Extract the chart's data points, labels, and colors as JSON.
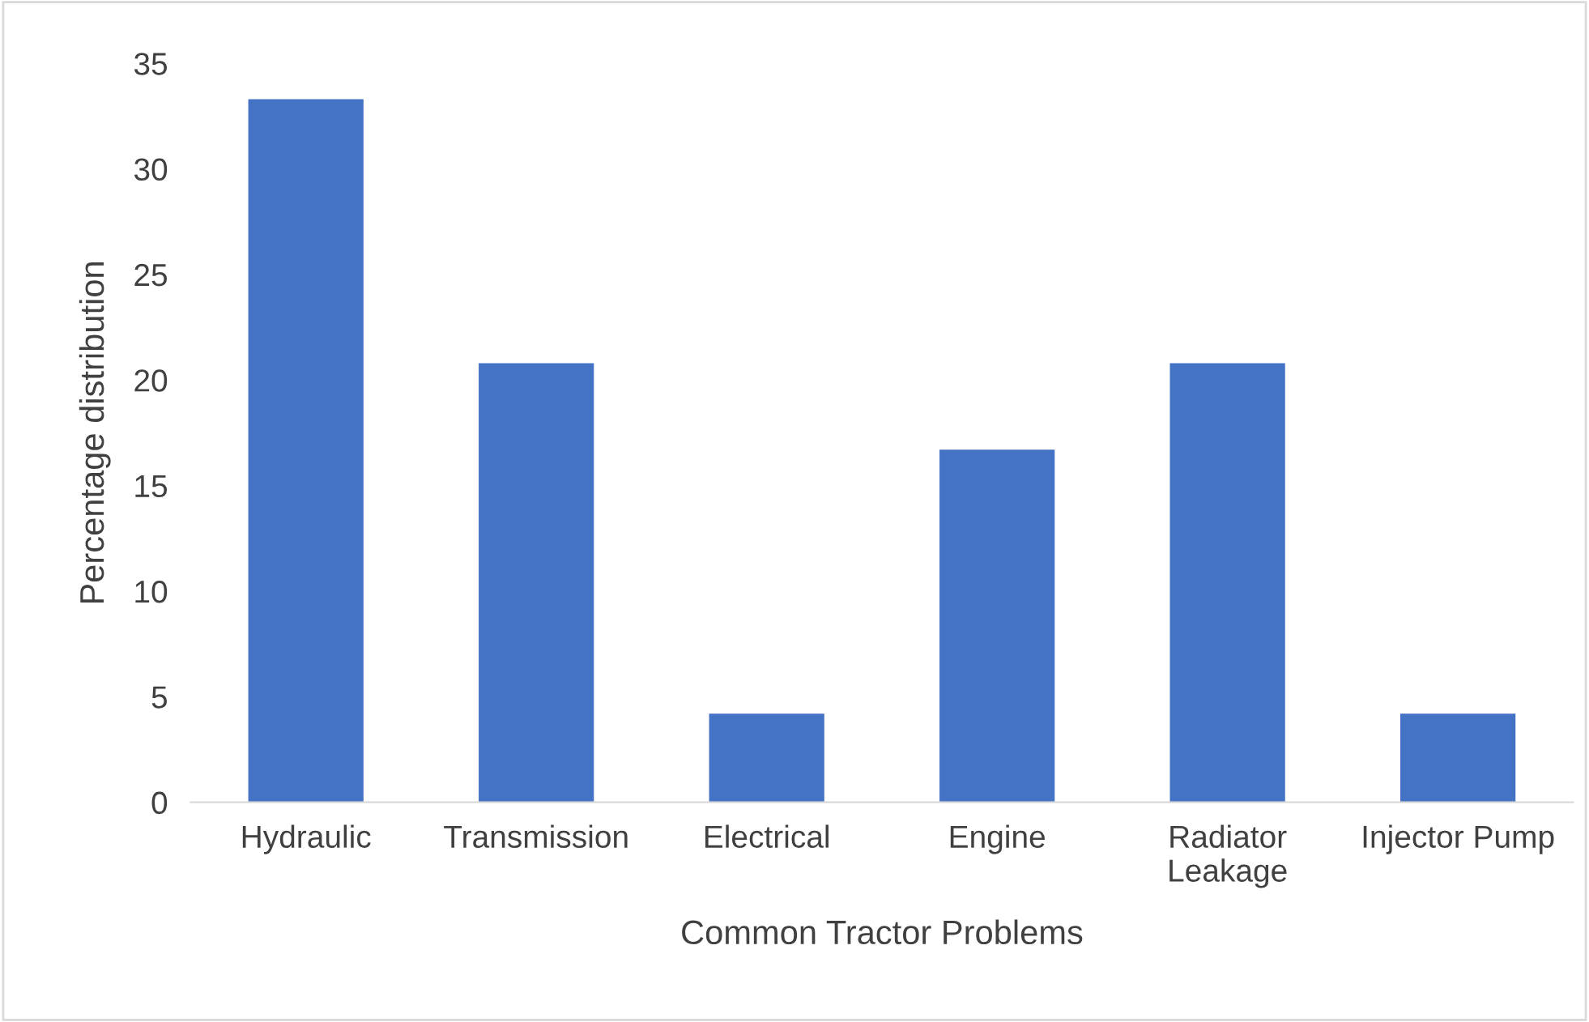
{
  "chart_data": {
    "type": "bar",
    "xlabel": "Common Tractor Problems",
    "ylabel": "Percentage distribution",
    "categories": [
      "Hydraulic",
      "Transmission",
      "Electrical",
      "Engine",
      "Radiator Leakage",
      "Injector Pump"
    ],
    "values": [
      33.3,
      20.8,
      4.2,
      16.7,
      20.8,
      4.2
    ],
    "color": "#4472c4",
    "ylim": [
      0,
      35
    ],
    "yticks": [
      0,
      5,
      10,
      15,
      20,
      25,
      30,
      35
    ],
    "grid": false,
    "legend": false
  }
}
